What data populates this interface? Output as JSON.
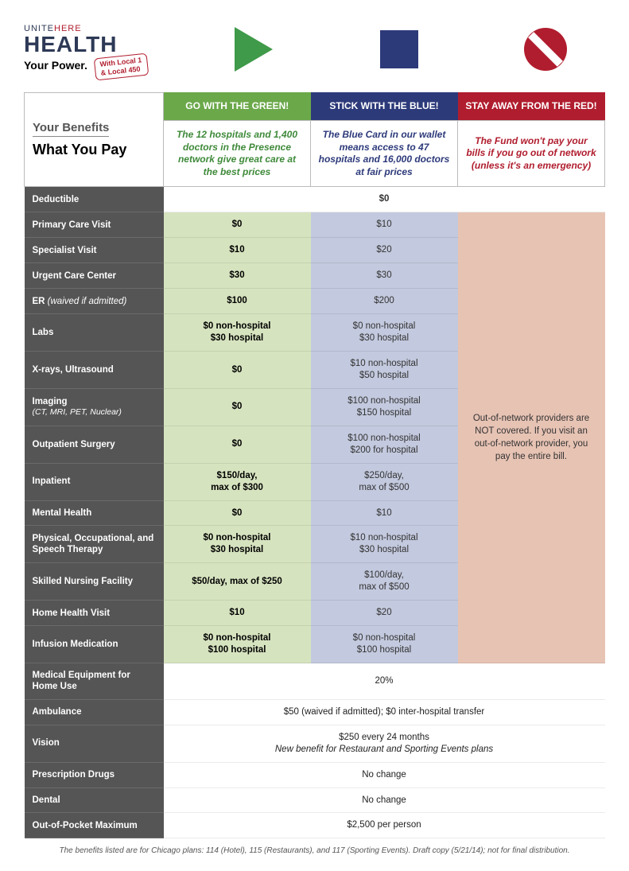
{
  "logo": {
    "line1a": "UNITE",
    "line1b": "HERE",
    "line2": "HEALTH",
    "tagline": "Your Power.",
    "stamp_l1": "With Local 1",
    "stamp_l2": "& Local 450"
  },
  "colors": {
    "green": "#6ba84a",
    "blue": "#2d3a7a",
    "red": "#b01d2e",
    "green_cell": "#d6e3bf",
    "blue_cell": "#c3c9de",
    "red_cell": "#e7c3b4",
    "rowlabel": "#555555"
  },
  "corner": {
    "l1": "Your Benefits",
    "l2": "What You Pay"
  },
  "headers": {
    "green": "GO WITH THE GREEN!",
    "blue": "STICK WITH THE BLUE!",
    "red": "STAY AWAY FROM THE RED!"
  },
  "taglines": {
    "green": "The 12 hospitals and 1,400 doctors in the Presence network give great care at the best prices",
    "blue": "The Blue Card in our wallet means access to 47 hospitals and 16,000 doctors at fair prices",
    "red": "The Fund won't pay your bills if you go out of network (unless it's an emergency)"
  },
  "red_block": "Out-of-network providers are NOT covered. If you visit an out-of-network provider, you pay the entire bill.",
  "rows_top": {
    "deductible": {
      "label": "Deductible",
      "span": "$0"
    }
  },
  "rows_gb": [
    {
      "label": "Primary Care Visit",
      "green": "$0",
      "blue": "$10"
    },
    {
      "label": "Specialist Visit",
      "green": "$10",
      "blue": "$20"
    },
    {
      "label": "Urgent Care Center",
      "green": "$30",
      "blue": "$30"
    },
    {
      "label": "ER",
      "sublabel_inline": "(waived if admitted)",
      "green": "$100",
      "blue": "$200"
    },
    {
      "label": "Labs",
      "green": "$0 non-hospital\n$30 hospital",
      "blue": "$0 non-hospital\n$30 hospital"
    },
    {
      "label": "X-rays, Ultrasound",
      "green": "$0",
      "blue": "$10 non-hospital\n$50 hospital"
    },
    {
      "label": "Imaging",
      "sublabel": "(CT, MRI, PET, Nuclear)",
      "green": "$0",
      "blue": "$100 non-hospital\n$150 hospital"
    },
    {
      "label": "Outpatient Surgery",
      "green": "$0",
      "blue": "$100 non-hospital\n$200 for hospital"
    },
    {
      "label": "Inpatient",
      "green": "$150/day,\nmax of $300",
      "blue": "$250/day,\nmax of $500"
    },
    {
      "label": "Mental Health",
      "green": "$0",
      "blue": "$10"
    },
    {
      "label": "Physical, Occupational, and Speech Therapy",
      "green": "$0 non-hospital\n$30 hospital",
      "blue": "$10 non-hospital\n$30 hospital"
    },
    {
      "label": "Skilled Nursing Facility",
      "green": "$50/day, max of $250",
      "blue": "$100/day,\nmax of $500"
    },
    {
      "label": "Home Health Visit",
      "green": "$10",
      "blue": "$20"
    },
    {
      "label": "Infusion Medication",
      "green": "$0 non-hospital\n$100 hospital",
      "blue": "$0 non-hospital\n$100 hospital"
    }
  ],
  "rows_span": [
    {
      "label": "Medical Equipment for Home Use",
      "value": "20%"
    },
    {
      "label": "Ambulance",
      "value": "$50 (waived if admitted); $0 inter-hospital transfer"
    },
    {
      "label": "Vision",
      "value": "$250 every 24 months",
      "note": "New benefit for Restaurant and Sporting Events plans"
    },
    {
      "label": "Prescription Drugs",
      "value": "No change"
    },
    {
      "label": "Dental",
      "value": "No change"
    },
    {
      "label": "Out-of-Pocket Maximum",
      "value": "$2,500 per person"
    }
  ],
  "footnote": "The benefits listed are for Chicago plans: 114 (Hotel), 115 (Restaurants), and 117 (Sporting Events). Draft copy (5/21/14); not for final distribution."
}
